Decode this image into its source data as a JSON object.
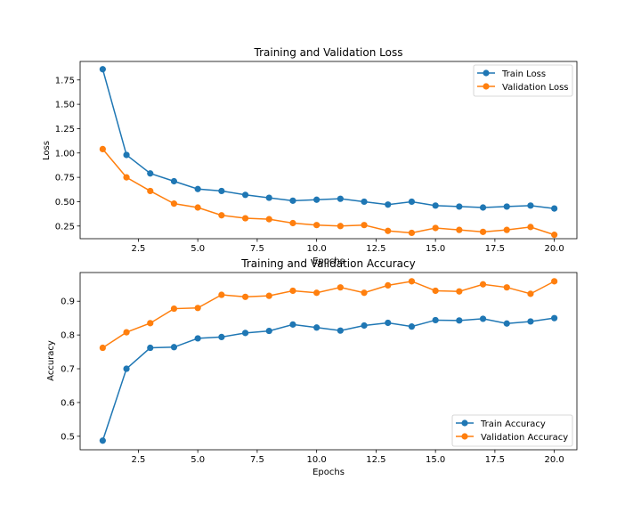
{
  "colors": {
    "train": "#1f77b4",
    "validation": "#ff7f0e",
    "axis": "#000000",
    "legend_border": "#cccccc"
  },
  "chart_data": [
    {
      "type": "line",
      "title": "Training and Validation Loss",
      "xlabel": "Epochs",
      "ylabel": "Loss",
      "xlim": [
        0.05,
        20.95
      ],
      "ylim": [
        0.12,
        1.94
      ],
      "xticks": [
        2.5,
        5.0,
        7.5,
        10.0,
        12.5,
        15.0,
        17.5,
        20.0
      ],
      "xtick_labels": [
        "2.5",
        "5.0",
        "7.5",
        "10.0",
        "12.5",
        "15.0",
        "17.5",
        "20.0"
      ],
      "yticks": [
        0.25,
        0.5,
        0.75,
        1.0,
        1.25,
        1.5,
        1.75
      ],
      "ytick_labels": [
        "0.25",
        "0.50",
        "0.75",
        "1.00",
        "1.25",
        "1.50",
        "1.75"
      ],
      "grid": false,
      "legend_position": "top-right",
      "x": [
        1,
        2,
        3,
        4,
        5,
        6,
        7,
        8,
        9,
        10,
        11,
        12,
        13,
        14,
        15,
        16,
        17,
        18,
        19,
        20
      ],
      "series": [
        {
          "name": "Train Loss",
          "color_key": "train",
          "values": [
            1.86,
            0.98,
            0.79,
            0.71,
            0.63,
            0.61,
            0.57,
            0.54,
            0.51,
            0.52,
            0.53,
            0.5,
            0.47,
            0.5,
            0.46,
            0.45,
            0.44,
            0.45,
            0.46,
            0.43
          ]
        },
        {
          "name": "Validation Loss",
          "color_key": "validation",
          "values": [
            1.04,
            0.75,
            0.61,
            0.48,
            0.44,
            0.36,
            0.33,
            0.32,
            0.28,
            0.26,
            0.25,
            0.26,
            0.2,
            0.18,
            0.23,
            0.21,
            0.19,
            0.21,
            0.24,
            0.16
          ]
        }
      ]
    },
    {
      "type": "line",
      "title": "Training and Validation Accuracy",
      "xlabel": "Epochs",
      "ylabel": "Accuracy",
      "xlim": [
        0.05,
        20.95
      ],
      "ylim": [
        0.46,
        0.985
      ],
      "xticks": [
        2.5,
        5.0,
        7.5,
        10.0,
        12.5,
        15.0,
        17.5,
        20.0
      ],
      "xtick_labels": [
        "2.5",
        "5.0",
        "7.5",
        "10.0",
        "12.5",
        "15.0",
        "17.5",
        "20.0"
      ],
      "yticks": [
        0.5,
        0.6,
        0.7,
        0.8,
        0.9
      ],
      "ytick_labels": [
        "0.5",
        "0.6",
        "0.7",
        "0.8",
        "0.9"
      ],
      "grid": false,
      "legend_position": "bottom-right",
      "x": [
        1,
        2,
        3,
        4,
        5,
        6,
        7,
        8,
        9,
        10,
        11,
        12,
        13,
        14,
        15,
        16,
        17,
        18,
        19,
        20
      ],
      "series": [
        {
          "name": "Train Accuracy",
          "color_key": "train",
          "values": [
            0.487,
            0.7,
            0.762,
            0.764,
            0.79,
            0.794,
            0.806,
            0.812,
            0.831,
            0.822,
            0.813,
            0.828,
            0.836,
            0.825,
            0.844,
            0.843,
            0.848,
            0.834,
            0.84,
            0.85
          ]
        },
        {
          "name": "Validation Accuracy",
          "color_key": "validation",
          "values": [
            0.762,
            0.808,
            0.835,
            0.878,
            0.88,
            0.919,
            0.913,
            0.916,
            0.931,
            0.925,
            0.941,
            0.925,
            0.947,
            0.959,
            0.931,
            0.929,
            0.95,
            0.941,
            0.922,
            0.959
          ]
        }
      ]
    }
  ]
}
